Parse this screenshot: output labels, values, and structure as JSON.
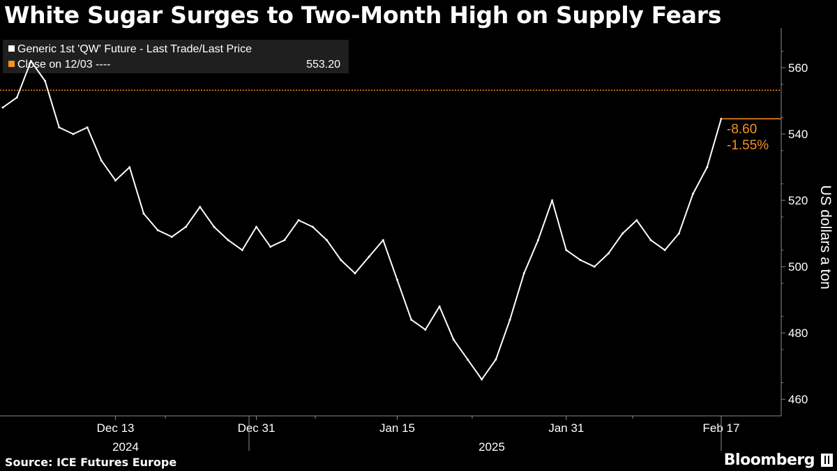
{
  "title": "White Sugar Surges to Two-Month High on Supply Fears",
  "source": "Source: ICE Futures Europe",
  "brand": "Bloomberg",
  "brand_icon": "bloomberg-terminal-icon",
  "colors": {
    "background": "#000000",
    "price": "#ffffff",
    "close": "#f7921e",
    "legend_bg": "#1f1f1f",
    "axis": "#8a8a8a"
  },
  "chart_data": {
    "type": "line",
    "title": "White Sugar Surges to Two-Month High on Supply Fears",
    "ylabel": "US dollars a ton",
    "ylim": [
      455,
      572
    ],
    "yticks": [
      460,
      480,
      500,
      520,
      540,
      560
    ],
    "grid": false,
    "legend_placement": "top-left",
    "x_tick_labels": [
      "Dec 13",
      "Dec 31",
      "Jan 15",
      "Jan 31",
      "Feb 17"
    ],
    "year_labels": [
      "2024",
      "2025"
    ],
    "legend": [
      {
        "name": "Generic 1st 'QW' Future - Last Trade/Last Price",
        "color": "#ffffff"
      },
      {
        "name": "Close on 12/03 ----",
        "value": "553.20",
        "color": "#f7921e"
      }
    ],
    "reference_line": {
      "name": "Close on 12/03",
      "value": 553.2
    },
    "annotations": {
      "last_price": 544.6,
      "change": "-8.60",
      "change_pct": "-1.55%"
    },
    "series": [
      {
        "name": "Generic 1st 'QW' Future - Last Trade/Last Price",
        "x": [
          "Dec 3",
          "Dec 4",
          "Dec 5",
          "Dec 6",
          "Dec 9",
          "Dec 10",
          "Dec 11",
          "Dec 12",
          "Dec 13",
          "Dec 16",
          "Dec 17",
          "Dec 18",
          "Dec 19",
          "Dec 20",
          "Dec 23",
          "Dec 24",
          "Dec 27",
          "Dec 30",
          "Dec 31",
          "Jan 2",
          "Jan 3",
          "Jan 6",
          "Jan 7",
          "Jan 8",
          "Jan 9",
          "Jan 10",
          "Jan 13",
          "Jan 14",
          "Jan 15",
          "Jan 16",
          "Jan 17",
          "Jan 20",
          "Jan 21",
          "Jan 22",
          "Jan 23",
          "Jan 24",
          "Jan 27",
          "Jan 28",
          "Jan 29",
          "Jan 30",
          "Jan 31",
          "Feb 3",
          "Feb 4",
          "Feb 5",
          "Feb 6",
          "Feb 7",
          "Feb 10",
          "Feb 11",
          "Feb 12",
          "Feb 13",
          "Feb 14",
          "Feb 17"
        ],
        "values": [
          548,
          551,
          562,
          556,
          542,
          540,
          542,
          532,
          526,
          530,
          516,
          511,
          509,
          512,
          518,
          512,
          508,
          505,
          512,
          506,
          508,
          514,
          512,
          508,
          502,
          498,
          503,
          508,
          496,
          484,
          481,
          488,
          478,
          472,
          466,
          472,
          484,
          498,
          508,
          520,
          505,
          502,
          500,
          504,
          510,
          514,
          508,
          505,
          510,
          522,
          530,
          544.6
        ]
      }
    ]
  }
}
